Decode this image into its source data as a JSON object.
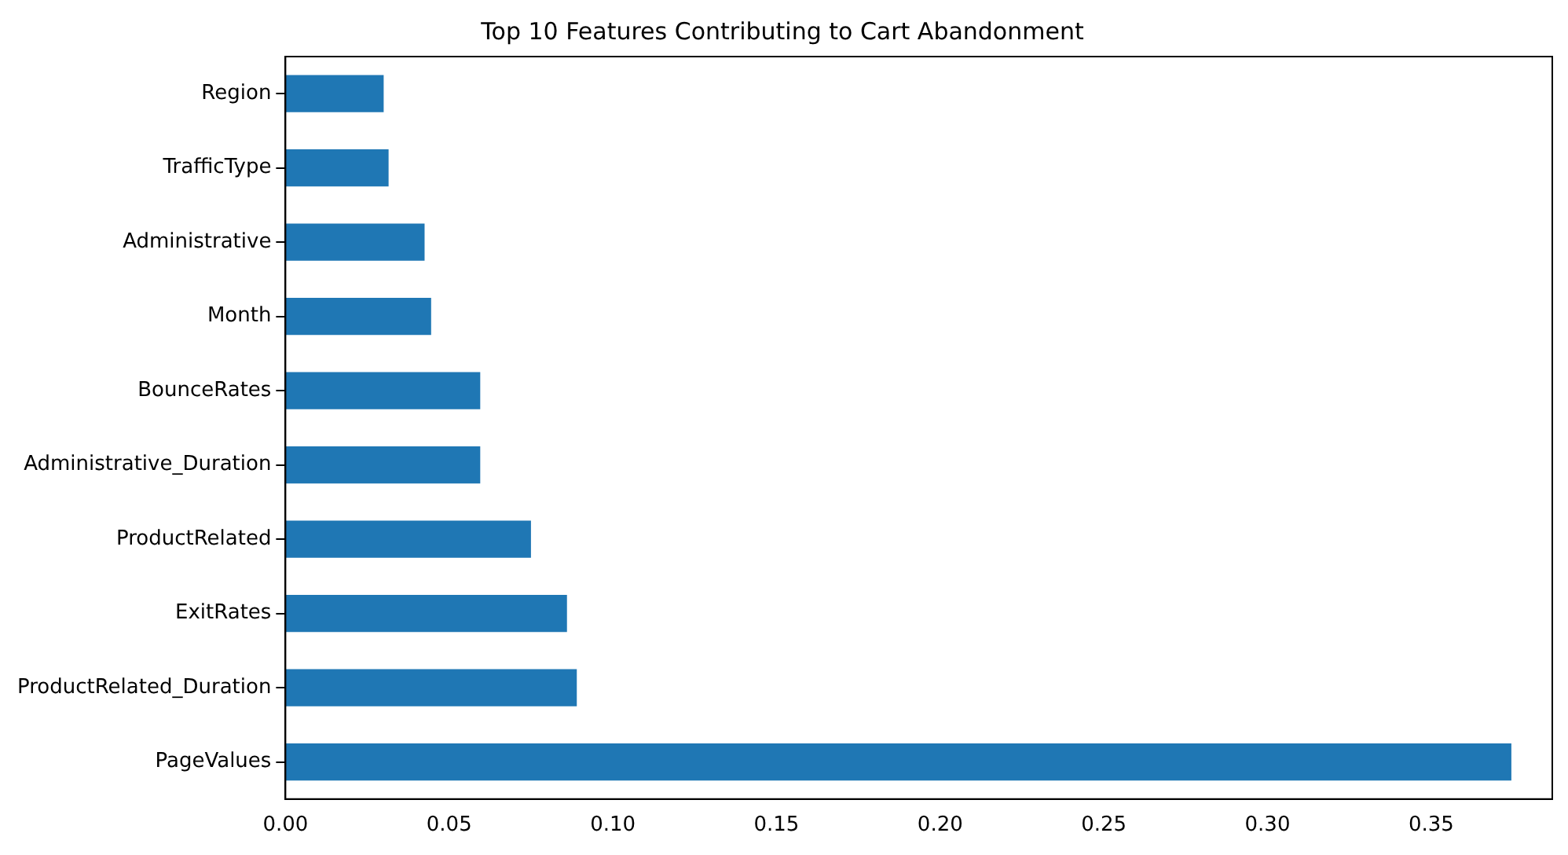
{
  "chart_data": {
    "type": "bar",
    "orientation": "horizontal",
    "title": "Top 10 Features Contributing to Cart Abandonment",
    "categories": [
      "Region",
      "TrafficType",
      "Administrative",
      "Month",
      "BounceRates",
      "Administrative_Duration",
      "ProductRelated",
      "ExitRates",
      "ProductRelated_Duration",
      "PageValues"
    ],
    "values": [
      0.03,
      0.0315,
      0.0425,
      0.0445,
      0.0595,
      0.0595,
      0.075,
      0.086,
      0.089,
      0.3745
    ],
    "color": "#1f77b4",
    "xlim": [
      0,
      0.387
    ],
    "xticks": [
      {
        "value": 0,
        "label": "0.00"
      },
      {
        "value": 0.05,
        "label": "0.05"
      },
      {
        "value": 0.1,
        "label": "0.10"
      },
      {
        "value": 0.15,
        "label": "0.15"
      },
      {
        "value": 0.2,
        "label": "0.20"
      },
      {
        "value": 0.25,
        "label": "0.25"
      },
      {
        "value": 0.3,
        "label": "0.30"
      },
      {
        "value": 0.35,
        "label": "0.35"
      }
    ],
    "grid": false,
    "legend": false
  }
}
